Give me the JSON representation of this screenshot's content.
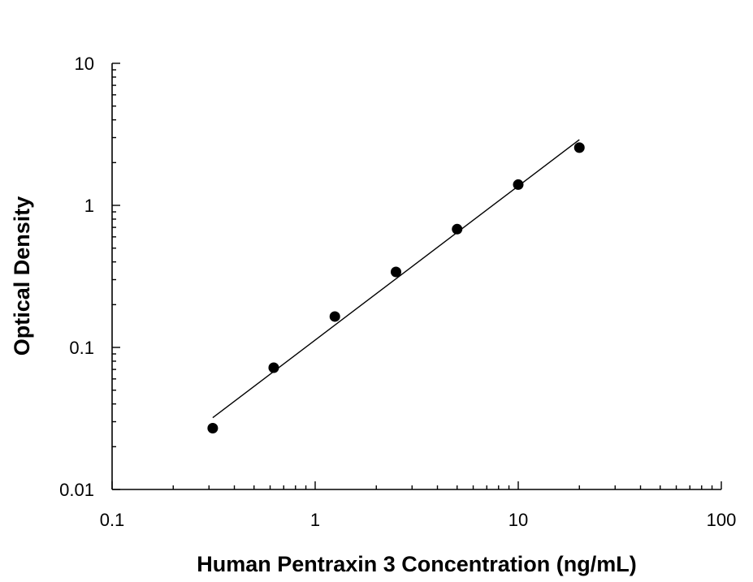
{
  "chart_data": {
    "type": "scatter",
    "title": "",
    "xlabel": "Human Pentraxin 3 Concentration (ng/mL)",
    "ylabel": "Optical Density",
    "xscale": "log",
    "yscale": "log",
    "xlim": [
      0.1,
      100
    ],
    "ylim": [
      0.01,
      10
    ],
    "x_tick_labels": [
      "0.1",
      "1",
      "10",
      "100"
    ],
    "y_tick_labels": [
      "0.01",
      "0.1",
      "1",
      "10"
    ],
    "grid": false,
    "legend": "none",
    "series": [
      {
        "x": [
          0.313,
          0.625,
          1.25,
          2.5,
          5,
          10,
          20
        ],
        "y": [
          0.027,
          0.072,
          0.165,
          0.34,
          0.68,
          1.4,
          2.55
        ]
      }
    ],
    "fit_line": {
      "x": [
        0.313,
        20
      ],
      "y": [
        0.032,
        2.9
      ]
    },
    "colors": {
      "marker": "#000000",
      "line": "#000000"
    }
  }
}
